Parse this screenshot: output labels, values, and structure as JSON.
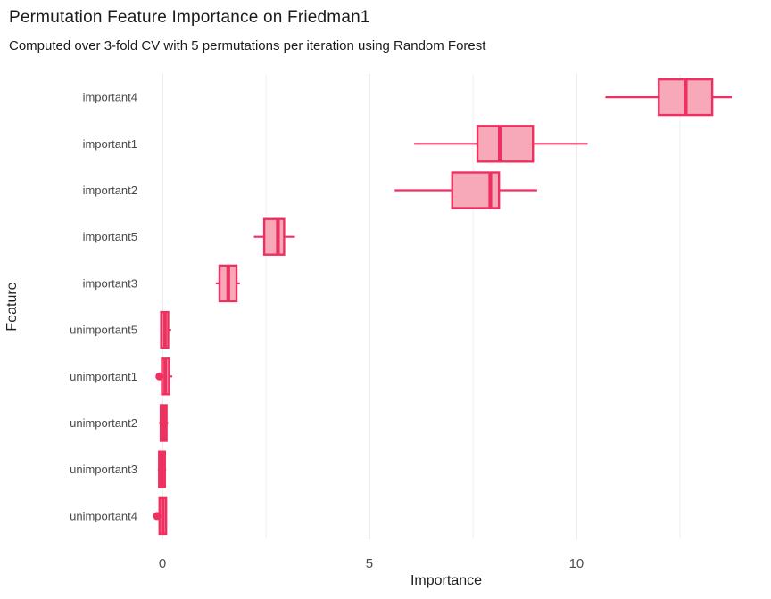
{
  "chart_data": {
    "type": "boxplot",
    "orientation": "horizontal",
    "title": "Permutation Feature Importance on Friedman1",
    "subtitle": "Computed over 3-fold CV with 5 permutations per iteration using Random Forest",
    "xlabel": "Importance",
    "ylabel": "Feature",
    "categories": [
      "important4",
      "important1",
      "important2",
      "important5",
      "important3",
      "unimportant5",
      "unimportant1",
      "unimportant2",
      "unimportant3",
      "unimportant4"
    ],
    "series": [
      {
        "label": "important4",
        "whisker_low": 10.7,
        "q1": 11.99,
        "median": 12.64,
        "q3": 13.28,
        "whisker_high": 13.75,
        "outliers": []
      },
      {
        "label": "important1",
        "whisker_low": 6.08,
        "q1": 7.61,
        "median": 8.15,
        "q3": 8.95,
        "whisker_high": 10.27,
        "outliers": []
      },
      {
        "label": "important2",
        "whisker_low": 5.61,
        "q1": 7.0,
        "median": 7.92,
        "q3": 8.13,
        "whisker_high": 9.05,
        "outliers": []
      },
      {
        "label": "important5",
        "whisker_low": 2.21,
        "q1": 2.46,
        "median": 2.79,
        "q3": 2.94,
        "whisker_high": 3.2,
        "outliers": []
      },
      {
        "label": "important3",
        "whisker_low": 1.29,
        "q1": 1.38,
        "median": 1.59,
        "q3": 1.79,
        "whisker_high": 1.87,
        "outliers": []
      },
      {
        "label": "unimportant5",
        "whisker_low": -0.05,
        "q1": -0.03,
        "median": 0.06,
        "q3": 0.14,
        "whisker_high": 0.21,
        "outliers": []
      },
      {
        "label": "unimportant1",
        "whisker_low": -0.13,
        "q1": -0.01,
        "median": 0.07,
        "q3": 0.16,
        "whisker_high": 0.24,
        "outliers": [
          -0.07
        ]
      },
      {
        "label": "unimportant2",
        "whisker_low": -0.08,
        "q1": -0.04,
        "median": 0.03,
        "q3": 0.1,
        "whisker_high": 0.14,
        "outliers": []
      },
      {
        "label": "unimportant3",
        "whisker_low": -0.11,
        "q1": -0.08,
        "median": -0.01,
        "q3": 0.06,
        "whisker_high": 0.09,
        "outliers": []
      },
      {
        "label": "unimportant4",
        "whisker_low": -0.11,
        "q1": -0.07,
        "median": 0.01,
        "q3": 0.09,
        "whisker_high": 0.11,
        "outliers": [
          -0.13
        ]
      }
    ],
    "x_ticks_major": [
      0,
      5,
      10
    ],
    "x_ticks_minor": [
      2.5,
      7.5,
      12.5
    ],
    "xlim": [
      -0.474,
      14.7
    ],
    "grid": true,
    "legend": "none",
    "colors": {
      "box_stroke": "#EE3060",
      "box_fill": "#F7A9BA",
      "grid_major": "#E4E4E4",
      "grid_minor": "#F1F1F1",
      "tick_text": "#4D4D4D",
      "category_text": "#4A4A4A",
      "title_text": "#1B1B1B",
      "background": "#FFFFFF"
    }
  }
}
